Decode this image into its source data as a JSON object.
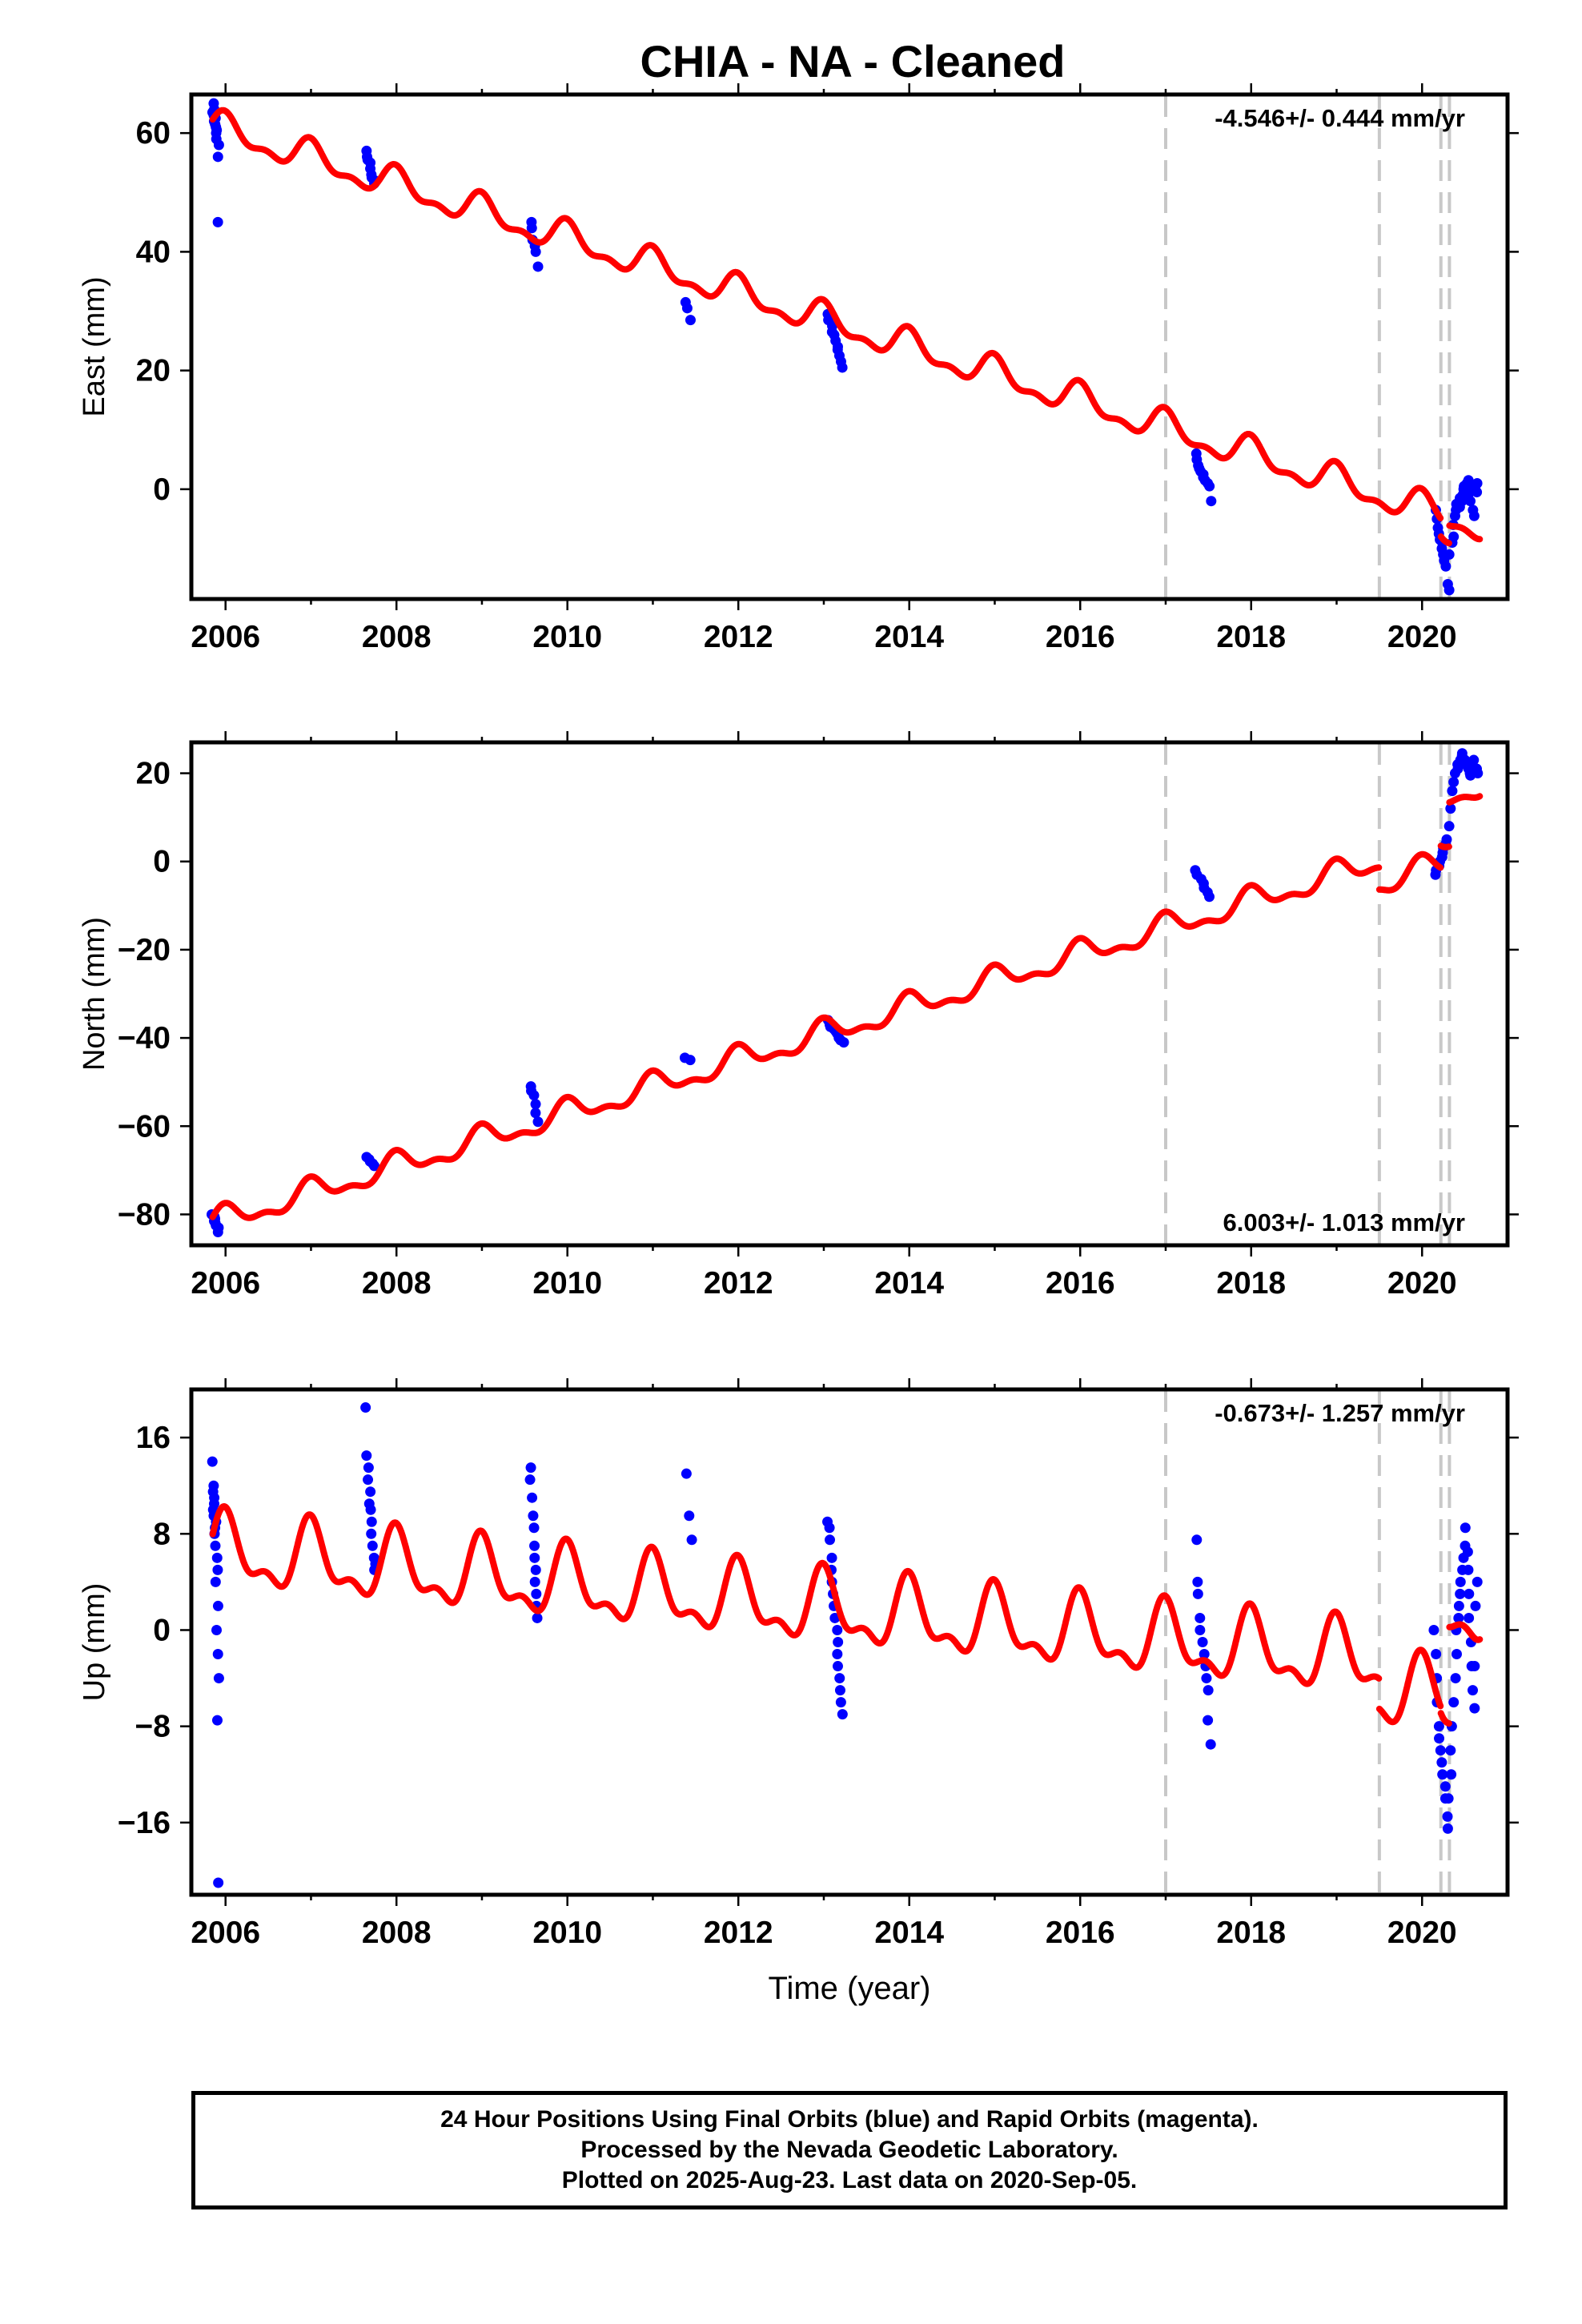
{
  "title": "CHIA  - NA - Cleaned",
  "footer": {
    "line1": "24 Hour Positions Using Final Orbits (blue) and Rapid Orbits (magenta).",
    "line2": "Processed by the Nevada Geodetic Laboratory.",
    "line3": "Plotted on 2025-Aug-23. Last data on 2020-Sep-05."
  },
  "colors": {
    "model": "#ff0000",
    "observations": "#0000ff",
    "breaks": "#c8c8c8"
  },
  "chart_data": [
    {
      "type": "scatter",
      "component": "east",
      "ylabel": "East (mm)",
      "xlabel": "",
      "rate_label": "-4.546+/- 0.444 mm/yr",
      "rate_position": "top",
      "xlim": [
        2005.6,
        2021.0
      ],
      "ylim": [
        -18.5,
        66.5
      ],
      "xticks": [
        2006,
        2008,
        2010,
        2012,
        2014,
        2016,
        2018,
        2020
      ],
      "yticks": [
        0,
        20,
        40,
        60
      ],
      "break_years": [
        2017.0,
        2019.5,
        2020.22,
        2020.32
      ],
      "model": {
        "name": "",
        "trend_rate": -4.546,
        "start_value": 61,
        "seasonal_amplitude": 2.3,
        "segment_offsets": [
          0,
          0,
          0,
          -3,
          0
        ]
      },
      "observation_epochs": [
        {
          "year_range": [
            2005.85,
            2005.92
          ],
          "values": [
            65,
            64,
            63.5,
            63,
            62.5,
            62,
            61.5,
            61,
            60.5,
            60,
            59,
            58,
            56,
            45
          ]
        },
        {
          "year_range": [
            2007.65,
            2007.75
          ],
          "values": [
            57,
            56,
            55.5,
            55,
            54,
            53,
            52.5,
            52,
            51.5
          ]
        },
        {
          "year_range": [
            2009.57,
            2009.65
          ],
          "values": [
            45,
            44,
            42,
            41,
            40,
            37.5
          ]
        },
        {
          "year_range": [
            2011.38,
            2011.45
          ],
          "values": [
            31.5,
            30.5,
            28.5
          ]
        },
        {
          "year_range": [
            2013.05,
            2013.22
          ],
          "values": [
            29.5,
            28.5,
            27.5,
            26.5,
            26,
            25,
            24,
            23.5,
            22.5,
            21.5,
            20.5
          ]
        },
        {
          "year_range": [
            2017.35,
            2017.52
          ],
          "values": [
            6,
            5,
            4,
            3.5,
            3,
            2.5,
            2,
            1.5,
            1,
            0.5,
            -2
          ]
        },
        {
          "year_range": [
            2020.15,
            2020.65
          ],
          "values": [
            -3.5,
            -5,
            -6.5,
            -7.5,
            -8.5,
            -9,
            -10,
            -11,
            -12,
            -13,
            -16,
            -17,
            -11,
            -9,
            -8,
            -6,
            -4.5,
            -3.5,
            -2.5,
            -1.5,
            -3,
            -2,
            -1,
            0,
            0.5,
            1,
            1.5,
            -1,
            0,
            -2,
            -3.5,
            -4.5,
            0.5,
            1,
            -0.5
          ]
        }
      ]
    },
    {
      "type": "scatter",
      "component": "north",
      "ylabel": "North (mm)",
      "xlabel": "",
      "rate_label": "6.003+/- 1.013 mm/yr",
      "rate_position": "bottom",
      "xlim": [
        2005.6,
        2021.0
      ],
      "ylim": [
        -87,
        27
      ],
      "xticks": [
        2006,
        2008,
        2010,
        2012,
        2014,
        2016,
        2018,
        2020
      ],
      "yticks": [
        -80,
        -60,
        -40,
        -20,
        0,
        20
      ],
      "break_years": [
        2017.0,
        2019.5,
        2020.22,
        2020.32
      ],
      "model": {
        "name": "",
        "trend_rate": 6.003,
        "start_value": -82,
        "seasonal_amplitude": 2.5,
        "segment_offsets": [
          0,
          0,
          -5,
          0,
          10
        ]
      },
      "observation_epochs": [
        {
          "year_range": [
            2005.85,
            2005.92
          ],
          "values": [
            -80,
            -80.5,
            -81,
            -81.5,
            -82,
            -82.5,
            -83,
            -84
          ]
        },
        {
          "year_range": [
            2007.65,
            2007.75
          ],
          "values": [
            -67,
            -67.5,
            -68,
            -68.5,
            -69
          ]
        },
        {
          "year_range": [
            2009.57,
            2009.65
          ],
          "values": [
            -51,
            -52,
            -53,
            -55,
            -57,
            -59
          ]
        },
        {
          "year_range": [
            2011.38,
            2011.45
          ],
          "values": [
            -44.5,
            -45
          ]
        },
        {
          "year_range": [
            2013.05,
            2013.22
          ],
          "values": [
            -36,
            -37,
            -37.5,
            -38,
            -38.5,
            -39,
            -40,
            -40.5,
            -41
          ]
        },
        {
          "year_range": [
            2017.35,
            2017.52
          ],
          "values": [
            -2,
            -3,
            -4,
            -5,
            -6,
            -7,
            -8
          ]
        },
        {
          "year_range": [
            2020.15,
            2020.65
          ],
          "values": [
            -3,
            -2,
            -1,
            0,
            1,
            2,
            3,
            4,
            5,
            8,
            12,
            16,
            18,
            20,
            21,
            22,
            23,
            24,
            24.5,
            23,
            22,
            21,
            20,
            19.5,
            22,
            23,
            21,
            20
          ]
        }
      ]
    },
    {
      "type": "scatter",
      "component": "up",
      "ylabel": "Up (mm)",
      "xlabel": "Time (year)",
      "rate_label": "-0.673+/- 1.257 mm/yr",
      "rate_position": "top",
      "xlim": [
        2005.6,
        2021.0
      ],
      "ylim": [
        -22,
        20
      ],
      "xticks": [
        2006,
        2008,
        2010,
        2012,
        2014,
        2016,
        2018,
        2020
      ],
      "yticks": [
        -16,
        -8,
        0,
        8,
        16
      ],
      "break_years": [
        2017.0,
        2019.5,
        2020.22,
        2020.32
      ],
      "model": {
        "name": "",
        "trend_rate": -0.673,
        "start_value": 6.5,
        "seasonal_amplitude": 2.6,
        "segment_offsets": [
          0,
          0,
          -2.5,
          -3,
          5
        ]
      },
      "observation_epochs": [
        {
          "year_range": [
            2005.85,
            2005.92
          ],
          "values": [
            14,
            12,
            11.5,
            11,
            10.5,
            10,
            9.5,
            9,
            8.5,
            8,
            7,
            6,
            5,
            4,
            2,
            0,
            -2,
            -4,
            -7.5,
            -21
          ]
        },
        {
          "year_range": [
            2007.65,
            2007.75
          ],
          "values": [
            18.5,
            14.5,
            13.5,
            12.5,
            11.5,
            10.5,
            10,
            9,
            8,
            7,
            6,
            5.5,
            5
          ]
        },
        {
          "year_range": [
            2009.57,
            2009.65
          ],
          "values": [
            13.5,
            12.5,
            11,
            9.5,
            8.5,
            7,
            6,
            5,
            4,
            3,
            2,
            1
          ]
        },
        {
          "year_range": [
            2011.38,
            2011.45
          ],
          "values": [
            13,
            9.5,
            7.5
          ]
        },
        {
          "year_range": [
            2013.05,
            2013.22
          ],
          "values": [
            9,
            8.5,
            7.5,
            6,
            5,
            4,
            3,
            2,
            1,
            0,
            -1,
            -2,
            -3,
            -4,
            -5,
            -6,
            -7
          ]
        },
        {
          "year_range": [
            2017.35,
            2017.52
          ],
          "values": [
            7.5,
            4,
            3,
            1,
            0,
            -1,
            -2,
            -3,
            -4,
            -5,
            -7.5,
            -9.5
          ]
        },
        {
          "year_range": [
            2020.15,
            2020.65
          ],
          "values": [
            0,
            -2,
            -4,
            -6,
            -8,
            -9,
            -10,
            -11,
            -12,
            -13,
            -14,
            -16.5,
            -15.5,
            -14,
            -12,
            -10,
            -8,
            -6,
            -4,
            -2,
            0,
            1,
            2,
            3,
            4,
            5,
            6,
            7,
            8.5,
            6.5,
            5,
            3,
            1,
            -1,
            -3,
            -5,
            -6.5,
            -3,
            2,
            4
          ]
        }
      ]
    }
  ]
}
